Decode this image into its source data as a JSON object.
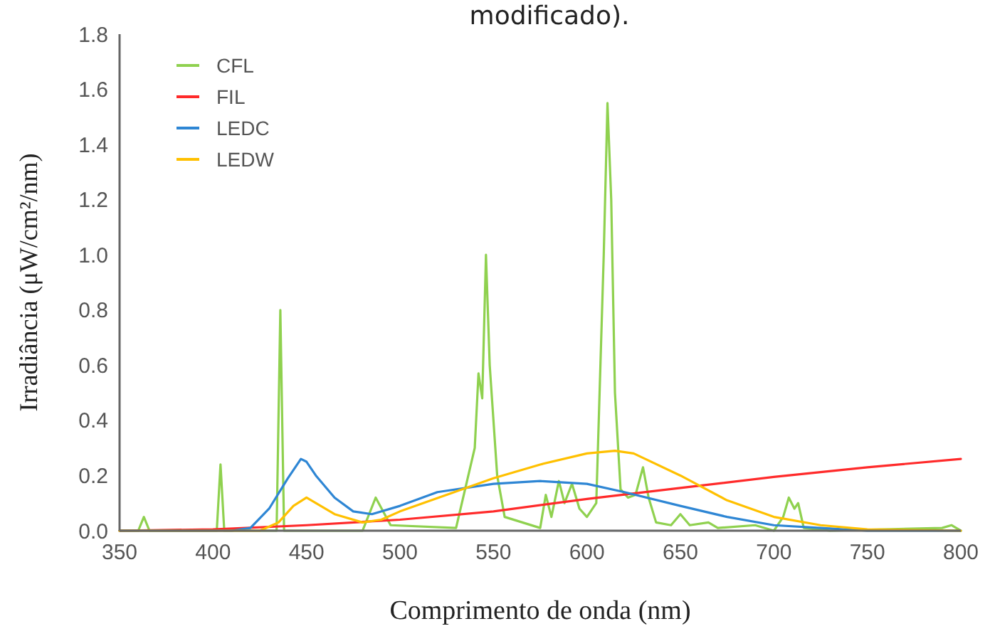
{
  "chart_data": {
    "type": "line",
    "xlabel": "Comprimento de onda (nm)",
    "ylabel": "Irradiância  (μW/cm²/nm)",
    "annotations": [
      "modificado)."
    ],
    "xlim": [
      350,
      800
    ],
    "ylim": [
      0,
      1.8
    ],
    "xticks": [
      350,
      400,
      450,
      500,
      550,
      600,
      650,
      700,
      750,
      800
    ],
    "yticks": [
      {
        "value": 0,
        "label": "0.0"
      },
      {
        "value": 0.2,
        "label": "0.2"
      },
      {
        "value": 0.4,
        "label": "0.4"
      },
      {
        "value": 0.6,
        "label": "0.6"
      },
      {
        "value": 0.8,
        "label": "0.8"
      },
      {
        "value": 1,
        "label": "1.0"
      },
      {
        "value": 1.2,
        "label": "1.2"
      },
      {
        "value": 1.4,
        "label": "1.4"
      },
      {
        "value": 1.6,
        "label": "1.6"
      },
      {
        "value": 1.8,
        "label": "1.8"
      }
    ],
    "grid": false,
    "legend": "top left",
    "marker": "none",
    "line_style": "solid",
    "series": [
      {
        "name": "CFL",
        "color": "#8fd14f",
        "x": [
          350,
          360,
          363,
          366,
          402,
          404,
          406,
          434,
          436,
          438,
          480,
          487,
          495,
          530,
          540,
          542,
          544,
          546,
          548,
          552,
          556,
          575,
          578,
          581,
          585,
          588,
          592,
          596,
          600,
          605,
          609,
          611,
          613,
          615,
          618,
          622,
          626,
          630,
          633,
          637,
          645,
          650,
          655,
          665,
          670,
          690,
          700,
          705,
          708,
          711,
          713,
          716,
          730,
          790,
          795,
          800
        ],
        "values": [
          0,
          0,
          0.05,
          0,
          0,
          0.24,
          0,
          0,
          0.8,
          0,
          0,
          0.12,
          0.02,
          0.01,
          0.3,
          0.57,
          0.48,
          1.0,
          0.6,
          0.2,
          0.05,
          0.01,
          0.13,
          0.05,
          0.18,
          0.1,
          0.17,
          0.08,
          0.05,
          0.1,
          1.0,
          1.55,
          1.2,
          0.5,
          0.15,
          0.12,
          0.13,
          0.23,
          0.12,
          0.03,
          0.02,
          0.06,
          0.02,
          0.03,
          0.01,
          0.02,
          0,
          0.05,
          0.12,
          0.08,
          0.1,
          0.01,
          0,
          0.01,
          0.02,
          0
        ]
      },
      {
        "name": "FIL",
        "color": "#ff2a2a",
        "x": [
          350,
          400,
          450,
          500,
          550,
          600,
          650,
          700,
          750,
          800
        ],
        "values": [
          0,
          0.005,
          0.02,
          0.04,
          0.07,
          0.115,
          0.155,
          0.195,
          0.23,
          0.26
        ]
      },
      {
        "name": "LEDC",
        "color": "#2e86d4",
        "x": [
          350,
          410,
          420,
          430,
          440,
          447,
          450,
          455,
          465,
          475,
          485,
          500,
          520,
          550,
          575,
          600,
          620,
          650,
          675,
          700,
          725,
          750,
          800
        ],
        "values": [
          0,
          0,
          0.01,
          0.08,
          0.19,
          0.26,
          0.25,
          0.2,
          0.12,
          0.07,
          0.06,
          0.09,
          0.14,
          0.17,
          0.18,
          0.17,
          0.14,
          0.09,
          0.05,
          0.02,
          0.01,
          0,
          0
        ]
      },
      {
        "name": "LEDW",
        "color": "#ffc000",
        "x": [
          350,
          425,
          435,
          443,
          450,
          455,
          465,
          480,
          490,
          500,
          525,
          550,
          575,
          600,
          615,
          625,
          650,
          675,
          700,
          725,
          750,
          800
        ],
        "values": [
          0,
          0,
          0.03,
          0.09,
          0.12,
          0.1,
          0.06,
          0.03,
          0.04,
          0.07,
          0.13,
          0.19,
          0.24,
          0.28,
          0.29,
          0.28,
          0.2,
          0.11,
          0.05,
          0.02,
          0.005,
          0
        ]
      }
    ]
  }
}
